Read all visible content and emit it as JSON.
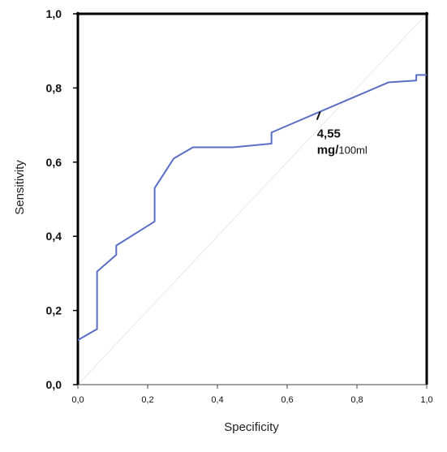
{
  "chart_data": {
    "type": "line",
    "xlabel": "Specificity",
    "ylabel": "Sensitivity",
    "xlim": [
      0.0,
      1.0
    ],
    "ylim": [
      0.0,
      1.0
    ],
    "x_ticks": [
      "0,0",
      "0,2",
      "0,4",
      "0,6",
      "0,8",
      "1,0"
    ],
    "y_ticks": [
      "0,0",
      "0,2",
      "0,4",
      "0,6",
      "0,8",
      "1,0"
    ],
    "grid": false,
    "series": [
      {
        "color": "#5a6ec4",
        "points": [
          [
            0.0,
            0.12
          ],
          [
            0.055,
            0.15
          ],
          [
            0.055,
            0.305
          ],
          [
            0.11,
            0.35
          ],
          [
            0.11,
            0.375
          ],
          [
            0.22,
            0.44
          ],
          [
            0.22,
            0.53
          ],
          [
            0.275,
            0.61
          ],
          [
            0.33,
            0.64
          ],
          [
            0.445,
            0.64
          ],
          [
            0.555,
            0.65
          ],
          [
            0.555,
            0.68
          ],
          [
            0.89,
            0.815
          ],
          [
            0.97,
            0.82
          ],
          [
            0.97,
            0.835
          ],
          [
            1.0,
            0.835
          ]
        ]
      }
    ],
    "reference_line": {
      "from": [
        0.0,
        0.0
      ],
      "to": [
        1.0,
        1.0
      ],
      "color": "#e8e8e8"
    },
    "annotations": [
      {
        "point": [
          0.69,
          0.725
        ],
        "text": "4,55",
        "subtext_main": "mg/",
        "subtext_small": "100ml"
      }
    ]
  }
}
